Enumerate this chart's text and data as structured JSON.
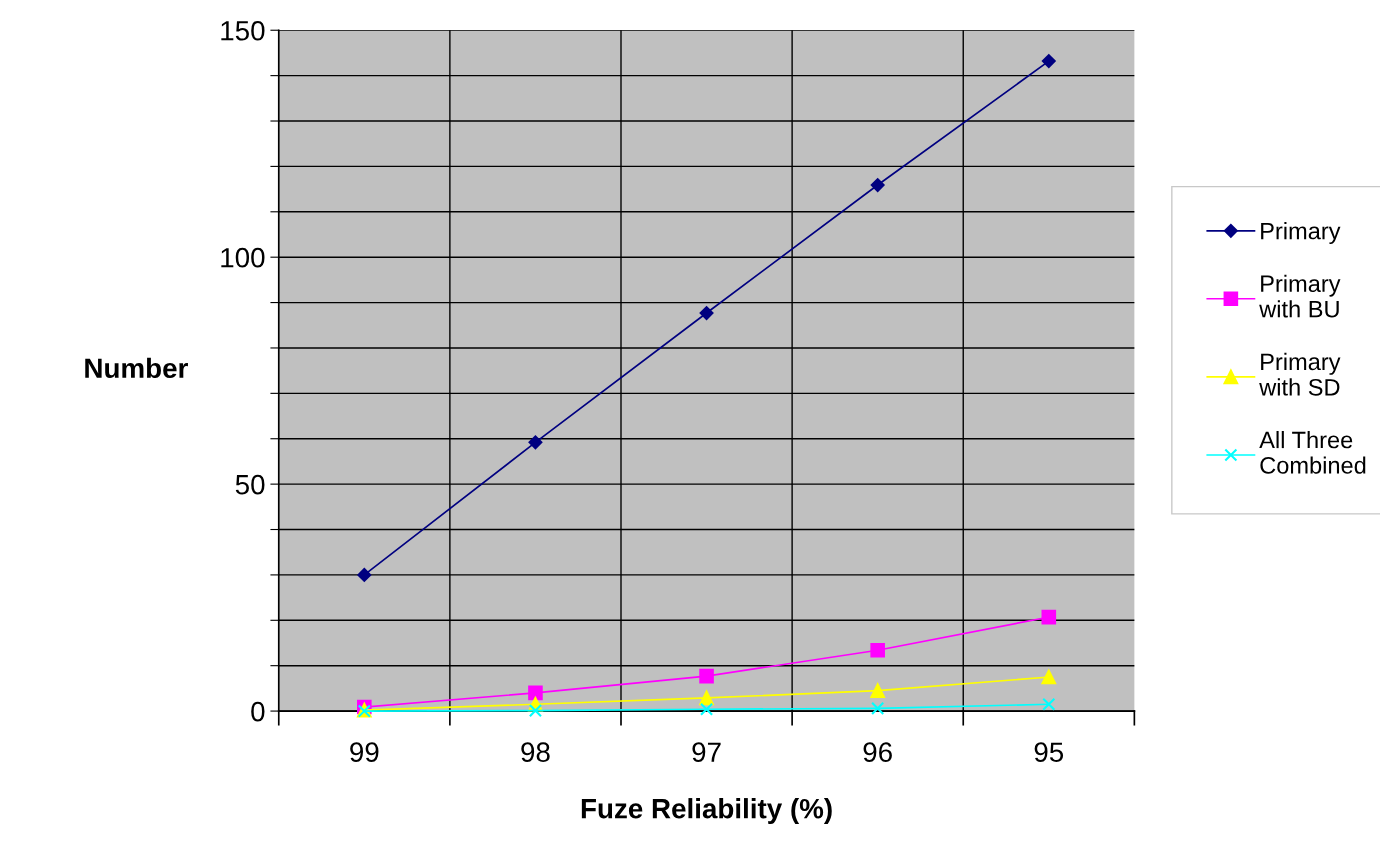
{
  "chart_data": {
    "type": "line",
    "xlabel": "Fuze Reliability (%)",
    "ylabel": "Number",
    "categories": [
      "99",
      "98",
      "97",
      "96",
      "95"
    ],
    "series": [
      {
        "name": "Primary",
        "color": "#000080",
        "marker": "diamond",
        "values": [
          30,
          59.2,
          87.7,
          115.9,
          143.2
        ]
      },
      {
        "name": "Primary\nwith BU",
        "color": "#ff00ff",
        "marker": "square",
        "values": [
          0.9,
          4.0,
          7.7,
          13.4,
          20.7
        ]
      },
      {
        "name": "Primary\nwith SD",
        "color": "#ffff00",
        "marker": "triangle",
        "values": [
          0.2,
          1.5,
          2.9,
          4.5,
          7.5
        ]
      },
      {
        "name": "All Three\nCombined",
        "color": "#00ffff",
        "marker": "cross",
        "values": [
          0,
          0.1,
          0.4,
          0.6,
          1.5
        ]
      }
    ],
    "ylim": [
      0,
      150
    ],
    "yticks": [
      0,
      {
        "value": 10,
        "label": null
      },
      {
        "value": 20,
        "label": null
      },
      {
        "value": 30,
        "label": null
      },
      {
        "value": 40,
        "label": null
      },
      50,
      {
        "value": 60,
        "label": null
      },
      {
        "value": 70,
        "label": null
      },
      {
        "value": 80,
        "label": null
      },
      {
        "value": 90,
        "label": null
      },
      100,
      {
        "value": 110,
        "label": null
      },
      {
        "value": 120,
        "label": null
      },
      {
        "value": 130,
        "label": null
      },
      {
        "value": 140,
        "label": null
      },
      150
    ],
    "grid": true,
    "legend": "right",
    "line_style": "solid"
  }
}
